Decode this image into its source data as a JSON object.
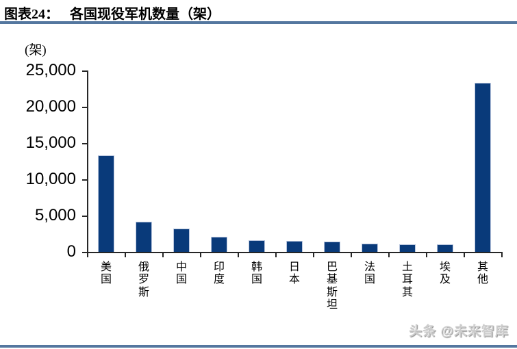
{
  "figure": {
    "label": "图表24：",
    "title": "各国现役军机数量（架）"
  },
  "chart_data": {
    "type": "bar",
    "title": "各国现役军机数量（架）",
    "unit_label": "(架)",
    "categories": [
      "美国",
      "俄罗斯",
      "中国",
      "印度",
      "韩国",
      "日本",
      "巴基斯坦",
      "法国",
      "土耳其",
      "埃及",
      "其他"
    ],
    "values": [
      13300,
      4150,
      3250,
      2100,
      1650,
      1550,
      1400,
      1150,
      1050,
      1050,
      23300
    ],
    "ylim": [
      0,
      25000
    ],
    "ytick_interval": 5000,
    "ytick_labels": [
      "25,000",
      "20,000",
      "15,000",
      "10,000",
      "5,000",
      "0"
    ],
    "xlabel": "",
    "ylabel": "(架)",
    "grid": false,
    "legend": false,
    "bar_color": "#093a7a",
    "bar_edge_color": "#b9c6de",
    "axis_color": "#262626"
  },
  "watermark": {
    "text": "头条 @未来智库"
  },
  "colors": {
    "rule_blue": "#54779f"
  }
}
